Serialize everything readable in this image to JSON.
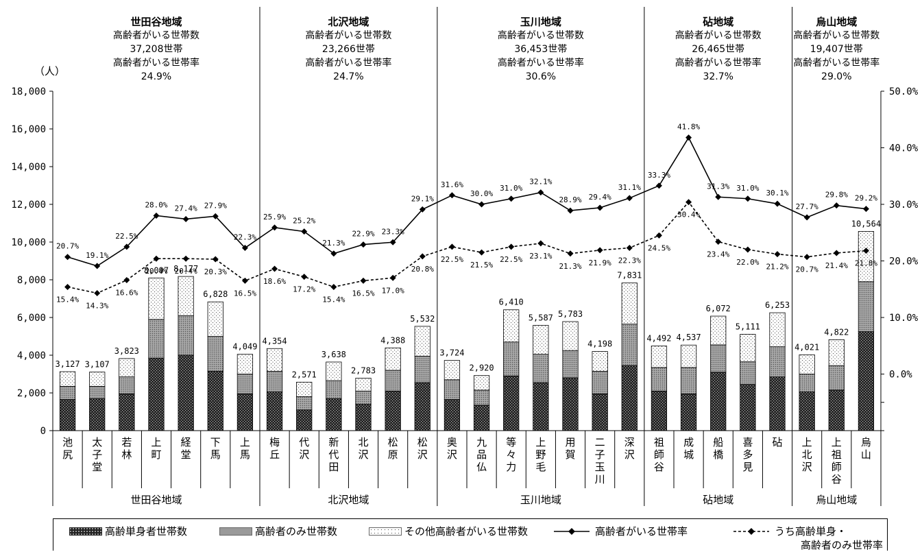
{
  "chart_data": {
    "type": "bar",
    "unit_label": "（人）",
    "y_left": {
      "min": 0,
      "max": 18000,
      "step": 2000,
      "ticks": [
        "0",
        "2,000",
        "4,000",
        "6,000",
        "8,000",
        "10,000",
        "12,000",
        "14,000",
        "16,000",
        "18,000"
      ]
    },
    "y_right": {
      "ticks": [
        "0.0%",
        "10.0%",
        "20.0%",
        "30.0%",
        "40.0%",
        "50.0%"
      ],
      "min": -10,
      "max": 50
    },
    "regions": [
      {
        "name": "世田谷地域",
        "households_label": "高齢者がいる世帯数",
        "households": "37,208世帯",
        "rate_label": "高齢者がいる世帯率",
        "rate": "24.9%"
      },
      {
        "name": "北沢地域",
        "households_label": "高齢者がいる世帯数",
        "households": "23,266世帯",
        "rate_label": "高齢者がいる世帯率",
        "rate": "24.7%"
      },
      {
        "name": "玉川地域",
        "households_label": "高齢者がいる世帯数",
        "households": "36,453世帯",
        "rate_label": "高齢者がいる世帯率",
        "rate": "30.6%"
      },
      {
        "name": "砧地域",
        "households_label": "高齢者がいる世帯数",
        "households": "26,465世帯",
        "rate_label": "高齢者がいる世帯率",
        "rate": "32.7%"
      },
      {
        "name": "烏山地域",
        "households_label": "高齢者がいる世帯数",
        "households": "19,407世帯",
        "rate_label": "高齢者がいる世帯率",
        "rate": "29.0%"
      }
    ],
    "region_spans": [
      7,
      6,
      7,
      5,
      3
    ],
    "categories": [
      "池尻",
      "太子堂",
      "若林",
      "上町",
      "経堂",
      "下馬",
      "上馬",
      "梅丘",
      "代沢",
      "新代田",
      "北沢",
      "松原",
      "松沢",
      "奥沢",
      "九品仏",
      "等々力",
      "上野毛",
      "用賀",
      "二子玉川",
      "深沢",
      "祖師谷",
      "成城",
      "船橋",
      "喜多見",
      "砧",
      "上北沢",
      "上祖師谷",
      "烏山"
    ],
    "totals": [
      3127,
      3107,
      3823,
      8097,
      8177,
      6828,
      4049,
      4354,
      2571,
      3638,
      2783,
      4388,
      5532,
      3724,
      2920,
      6410,
      5587,
      5783,
      4198,
      7831,
      4492,
      4537,
      6072,
      5111,
      6253,
      4021,
      4822,
      10564
    ],
    "total_labels": [
      "3,127",
      "3,107",
      "3,823",
      "8,097",
      "8,177",
      "6,828",
      "4,049",
      "4,354",
      "2,571",
      "3,638",
      "2,783",
      "4,388",
      "5,532",
      "3,724",
      "2,920",
      "6,410",
      "5,587",
      "5,783",
      "4,198",
      "7,831",
      "4,492",
      "4,537",
      "6,072",
      "5,111",
      "6,253",
      "4,021",
      "4,822",
      "10,564"
    ],
    "series": [
      {
        "name": "高齢単身者世帯数",
        "pattern": "dark",
        "values": [
          1650,
          1700,
          1950,
          3850,
          4000,
          3150,
          1950,
          2050,
          1100,
          1700,
          1400,
          2100,
          2550,
          1650,
          1350,
          2900,
          2550,
          2800,
          1950,
          3450,
          2100,
          1950,
          3100,
          2450,
          2850,
          2050,
          2150,
          5250
        ]
      },
      {
        "name": "高齢者のみ世帯数",
        "pattern": "medium",
        "values": [
          700,
          650,
          900,
          2050,
          2100,
          1850,
          1050,
          1100,
          700,
          950,
          700,
          1100,
          1400,
          1050,
          800,
          1800,
          1500,
          1450,
          1200,
          2200,
          1250,
          1400,
          1450,
          1200,
          1600,
          950,
          1300,
          2650
        ]
      },
      {
        "name": "その他高齢者がいる世帯数",
        "pattern": "light"
      }
    ],
    "rate_series": [
      {
        "name": "高齢者がいる世帯率",
        "style": "solid",
        "values": [
          20.7,
          19.1,
          22.5,
          28.0,
          27.4,
          27.9,
          22.3,
          25.9,
          25.2,
          21.3,
          22.9,
          23.3,
          29.1,
          31.6,
          30.0,
          31.0,
          32.1,
          28.9,
          29.4,
          31.1,
          33.3,
          41.8,
          31.3,
          31.0,
          30.1,
          27.7,
          29.8,
          29.2
        ],
        "labels": [
          "20.7%",
          "19.1%",
          "22.5%",
          "28.0%",
          "27.4%",
          "27.9%",
          "22.3%",
          "25.9%",
          "25.2%",
          "21.3%",
          "22.9%",
          "23.3%",
          "29.1%",
          "31.6%",
          "30.0%",
          "31.0%",
          "32.1%",
          "28.9%",
          "29.4%",
          "31.1%",
          "33.3%",
          "41.8%",
          "31.3%",
          "31.0%",
          "30.1%",
          "27.7%",
          "29.8%",
          "29.2%"
        ]
      },
      {
        "name": "うち高齢単身・高齢者のみ世帯率",
        "name_line1": "うち高齢単身・",
        "name_line2": "高齢者のみ世帯率",
        "style": "dashed",
        "values": [
          15.4,
          14.3,
          16.6,
          20.4,
          20.4,
          20.3,
          16.5,
          18.6,
          17.2,
          15.4,
          16.5,
          17.0,
          20.8,
          22.5,
          21.5,
          22.5,
          23.1,
          21.3,
          21.9,
          22.3,
          24.5,
          30.4,
          23.4,
          22.0,
          21.2,
          20.7,
          21.4,
          21.8
        ],
        "labels": [
          "15.4%",
          "14.3%",
          "16.6%",
          "20.4%",
          "20.4%",
          "20.3%",
          "16.5%",
          "18.6%",
          "17.2%",
          "15.4%",
          "16.5%",
          "17.0%",
          "20.8%",
          "22.5%",
          "21.5%",
          "22.5%",
          "23.1%",
          "21.3%",
          "21.9%",
          "22.3%",
          "24.5%",
          "30.4%",
          "23.4%",
          "22.0%",
          "21.2%",
          "20.7%",
          "21.4%",
          "21.8%"
        ]
      }
    ],
    "region_axis_labels": [
      "世田谷地域",
      "北沢地域",
      "玉川地域",
      "砧地域",
      "烏山地域"
    ],
    "grid": false,
    "legend_placement": "bottom"
  }
}
